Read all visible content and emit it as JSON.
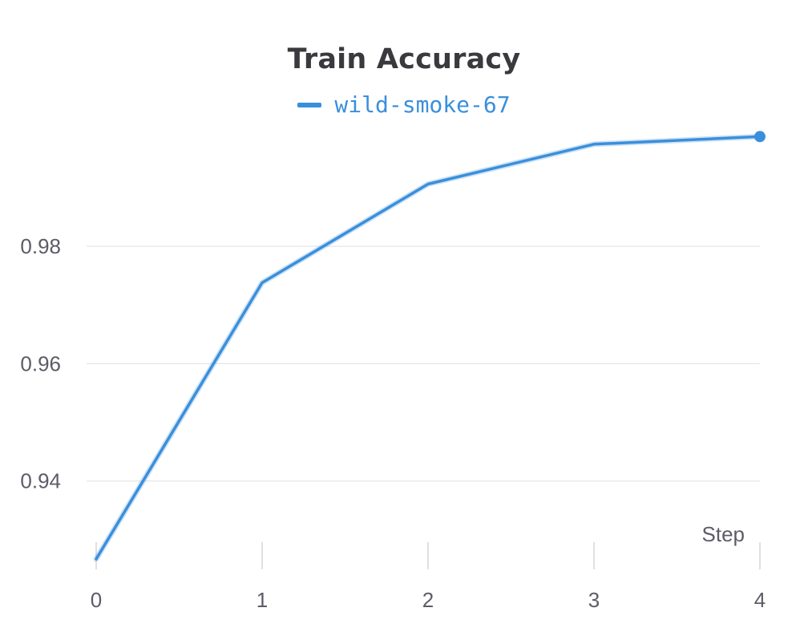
{
  "chart_data": {
    "type": "line",
    "title": "Train Accuracy",
    "xlabel": "Step",
    "ylabel": "",
    "x": [
      0,
      1,
      2,
      3,
      4
    ],
    "series": [
      {
        "name": "wild-smoke-67",
        "color": "#3a8fdc",
        "values": [
          0.9267,
          0.9738,
          0.9906,
          0.9974,
          0.9987
        ]
      }
    ],
    "xlim": [
      0,
      4
    ],
    "ylim": [
      0.9252,
      1.0012
    ],
    "xticks": [
      "0",
      "1",
      "2",
      "3",
      "4"
    ],
    "yticks": [
      "0.94",
      "0.96",
      "0.98"
    ],
    "ytick_values": [
      0.94,
      0.96,
      0.98
    ],
    "grid": true,
    "legend_position": "top-center",
    "last_point_marker": true
  }
}
